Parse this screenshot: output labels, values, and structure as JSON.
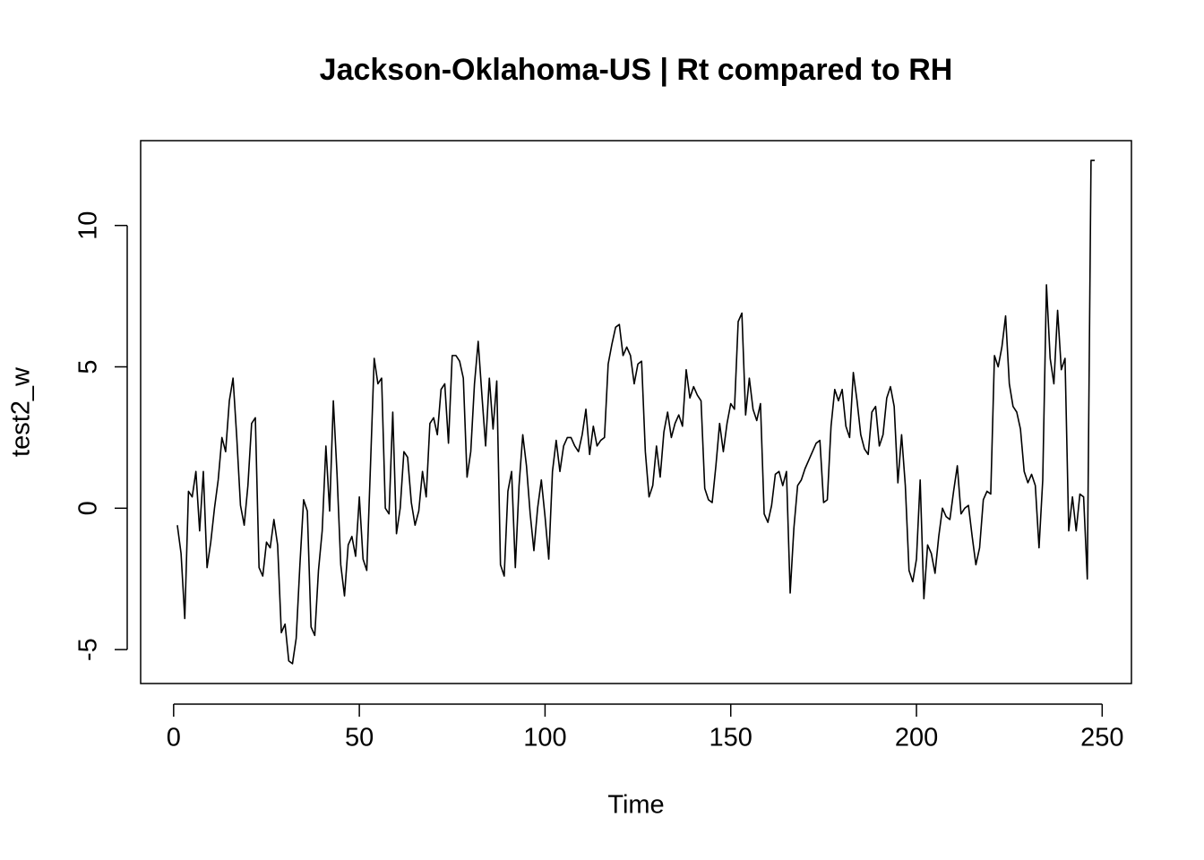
{
  "chart_data": {
    "type": "line",
    "title": "Jackson-Oklahoma-US | Rt compared to RH",
    "xlabel": "Time",
    "ylabel": "test2_w",
    "x": [
      1,
      2,
      3,
      4,
      5,
      6,
      7,
      8,
      9,
      10,
      11,
      12,
      13,
      14,
      15,
      16,
      17,
      18,
      19,
      20,
      21,
      22,
      23,
      24,
      25,
      26,
      27,
      28,
      29,
      30,
      31,
      32,
      33,
      34,
      35,
      36,
      37,
      38,
      39,
      40,
      41,
      42,
      43,
      44,
      45,
      46,
      47,
      48,
      49,
      50,
      51,
      52,
      53,
      54,
      55,
      56,
      57,
      58,
      59,
      60,
      61,
      62,
      63,
      64,
      65,
      66,
      67,
      68,
      69,
      70,
      71,
      72,
      73,
      74,
      75,
      76,
      77,
      78,
      79,
      80,
      81,
      82,
      83,
      84,
      85,
      86,
      87,
      88,
      89,
      90,
      91,
      92,
      93,
      94,
      95,
      96,
      97,
      98,
      99,
      100,
      101,
      102,
      103,
      104,
      105,
      106,
      107,
      108,
      109,
      110,
      111,
      112,
      113,
      114,
      115,
      116,
      117,
      118,
      119,
      120,
      121,
      122,
      123,
      124,
      125,
      126,
      127,
      128,
      129,
      130,
      131,
      132,
      133,
      134,
      135,
      136,
      137,
      138,
      139,
      140,
      141,
      142,
      143,
      144,
      145,
      146,
      147,
      148,
      149,
      150,
      151,
      152,
      153,
      154,
      155,
      156,
      157,
      158,
      159,
      160,
      161,
      162,
      163,
      164,
      165,
      166,
      167,
      168,
      169,
      170,
      171,
      172,
      173,
      174,
      175,
      176,
      177,
      178,
      179,
      180,
      181,
      182,
      183,
      184,
      185,
      186,
      187,
      188,
      189,
      190,
      191,
      192,
      193,
      194,
      195,
      196,
      197,
      198,
      199,
      200,
      201,
      202,
      203,
      204,
      205,
      206,
      207,
      208,
      209,
      210,
      211,
      212,
      213,
      214,
      215,
      216,
      217,
      218,
      219,
      220,
      221,
      222,
      223,
      224,
      225,
      226,
      227,
      228,
      229,
      230,
      231,
      232,
      233,
      234,
      235,
      236,
      237,
      238,
      239,
      240,
      241,
      242,
      243,
      244,
      245,
      246,
      247,
      248
    ],
    "series": [
      {
        "name": "test2_w",
        "color": "#000000",
        "values": [
          -0.6,
          -1.6,
          -3.9,
          0.6,
          0.4,
          1.3,
          -0.8,
          1.3,
          -2.1,
          -1.2,
          0.0,
          1.0,
          2.5,
          2.0,
          3.8,
          4.6,
          2.5,
          0.1,
          -0.6,
          0.8,
          3.0,
          3.2,
          -2.1,
          -2.4,
          -1.2,
          -1.4,
          -0.4,
          -1.3,
          -4.4,
          -4.1,
          -5.4,
          -5.5,
          -4.6,
          -2.0,
          0.3,
          -0.1,
          -4.2,
          -4.5,
          -2.2,
          -0.8,
          2.2,
          -0.1,
          3.8,
          1.2,
          -2.0,
          -3.1,
          -1.3,
          -1.0,
          -1.7,
          0.4,
          -1.8,
          -2.2,
          1.5,
          5.3,
          4.4,
          4.6,
          0.0,
          -0.2,
          3.4,
          -0.9,
          0.0,
          2.0,
          1.8,
          0.2,
          -0.6,
          -0.1,
          1.3,
          0.4,
          3.0,
          3.2,
          2.6,
          4.2,
          4.4,
          2.3,
          5.4,
          5.4,
          5.2,
          4.6,
          1.1,
          2.0,
          4.4,
          5.9,
          4.0,
          2.2,
          4.6,
          2.8,
          4.5,
          -2.0,
          -2.4,
          0.6,
          1.3,
          -2.1,
          0.8,
          2.6,
          1.5,
          -0.2,
          -1.5,
          0.0,
          1.0,
          -0.3,
          -1.8,
          1.3,
          2.4,
          1.3,
          2.2,
          2.5,
          2.5,
          2.2,
          2.0,
          2.6,
          3.5,
          1.9,
          2.9,
          2.2,
          2.4,
          2.5,
          5.1,
          5.8,
          6.4,
          6.5,
          5.4,
          5.7,
          5.4,
          4.4,
          5.1,
          5.2,
          2.0,
          0.4,
          0.8,
          2.2,
          1.1,
          2.7,
          3.4,
          2.5,
          3.0,
          3.3,
          2.9,
          4.9,
          3.9,
          4.3,
          4.0,
          3.8,
          0.7,
          0.3,
          0.2,
          1.5,
          3.0,
          2.0,
          3.0,
          3.7,
          3.5,
          6.6,
          6.9,
          3.3,
          4.6,
          3.5,
          3.1,
          3.7,
          -0.2,
          -0.5,
          0.1,
          1.2,
          1.3,
          0.8,
          1.3,
          -3.0,
          -0.7,
          0.8,
          1.0,
          1.4,
          1.7,
          2.0,
          2.3,
          2.4,
          0.2,
          0.3,
          2.9,
          4.2,
          3.8,
          4.2,
          2.9,
          2.5,
          4.8,
          3.8,
          2.6,
          2.1,
          1.9,
          3.4,
          3.6,
          2.2,
          2.6,
          3.9,
          4.3,
          3.6,
          0.9,
          2.6,
          0.8,
          -2.2,
          -2.6,
          -1.8,
          1.0,
          -3.2,
          -1.3,
          -1.6,
          -2.3,
          -1.0,
          0.0,
          -0.3,
          -0.4,
          0.6,
          1.5,
          -0.2,
          0.0,
          0.1,
          -1.0,
          -2.0,
          -1.4,
          0.3,
          0.6,
          0.5,
          5.4,
          5.0,
          5.7,
          6.8,
          4.4,
          3.6,
          3.4,
          2.8,
          1.3,
          0.9,
          1.2,
          0.8,
          -1.4,
          1.0,
          7.9,
          5.3,
          4.4,
          7.0,
          4.9,
          5.3,
          -0.8,
          0.4,
          -0.8,
          0.5,
          0.4,
          -2.5,
          12.3,
          12.3
        ]
      }
    ],
    "xlim": [
      -8.88,
      257.88
    ],
    "ylim": [
      -6.2,
      13.0
    ],
    "xticks": [
      0,
      50,
      100,
      150,
      200,
      250
    ],
    "yticks": [
      -5,
      0,
      5,
      10
    ]
  }
}
